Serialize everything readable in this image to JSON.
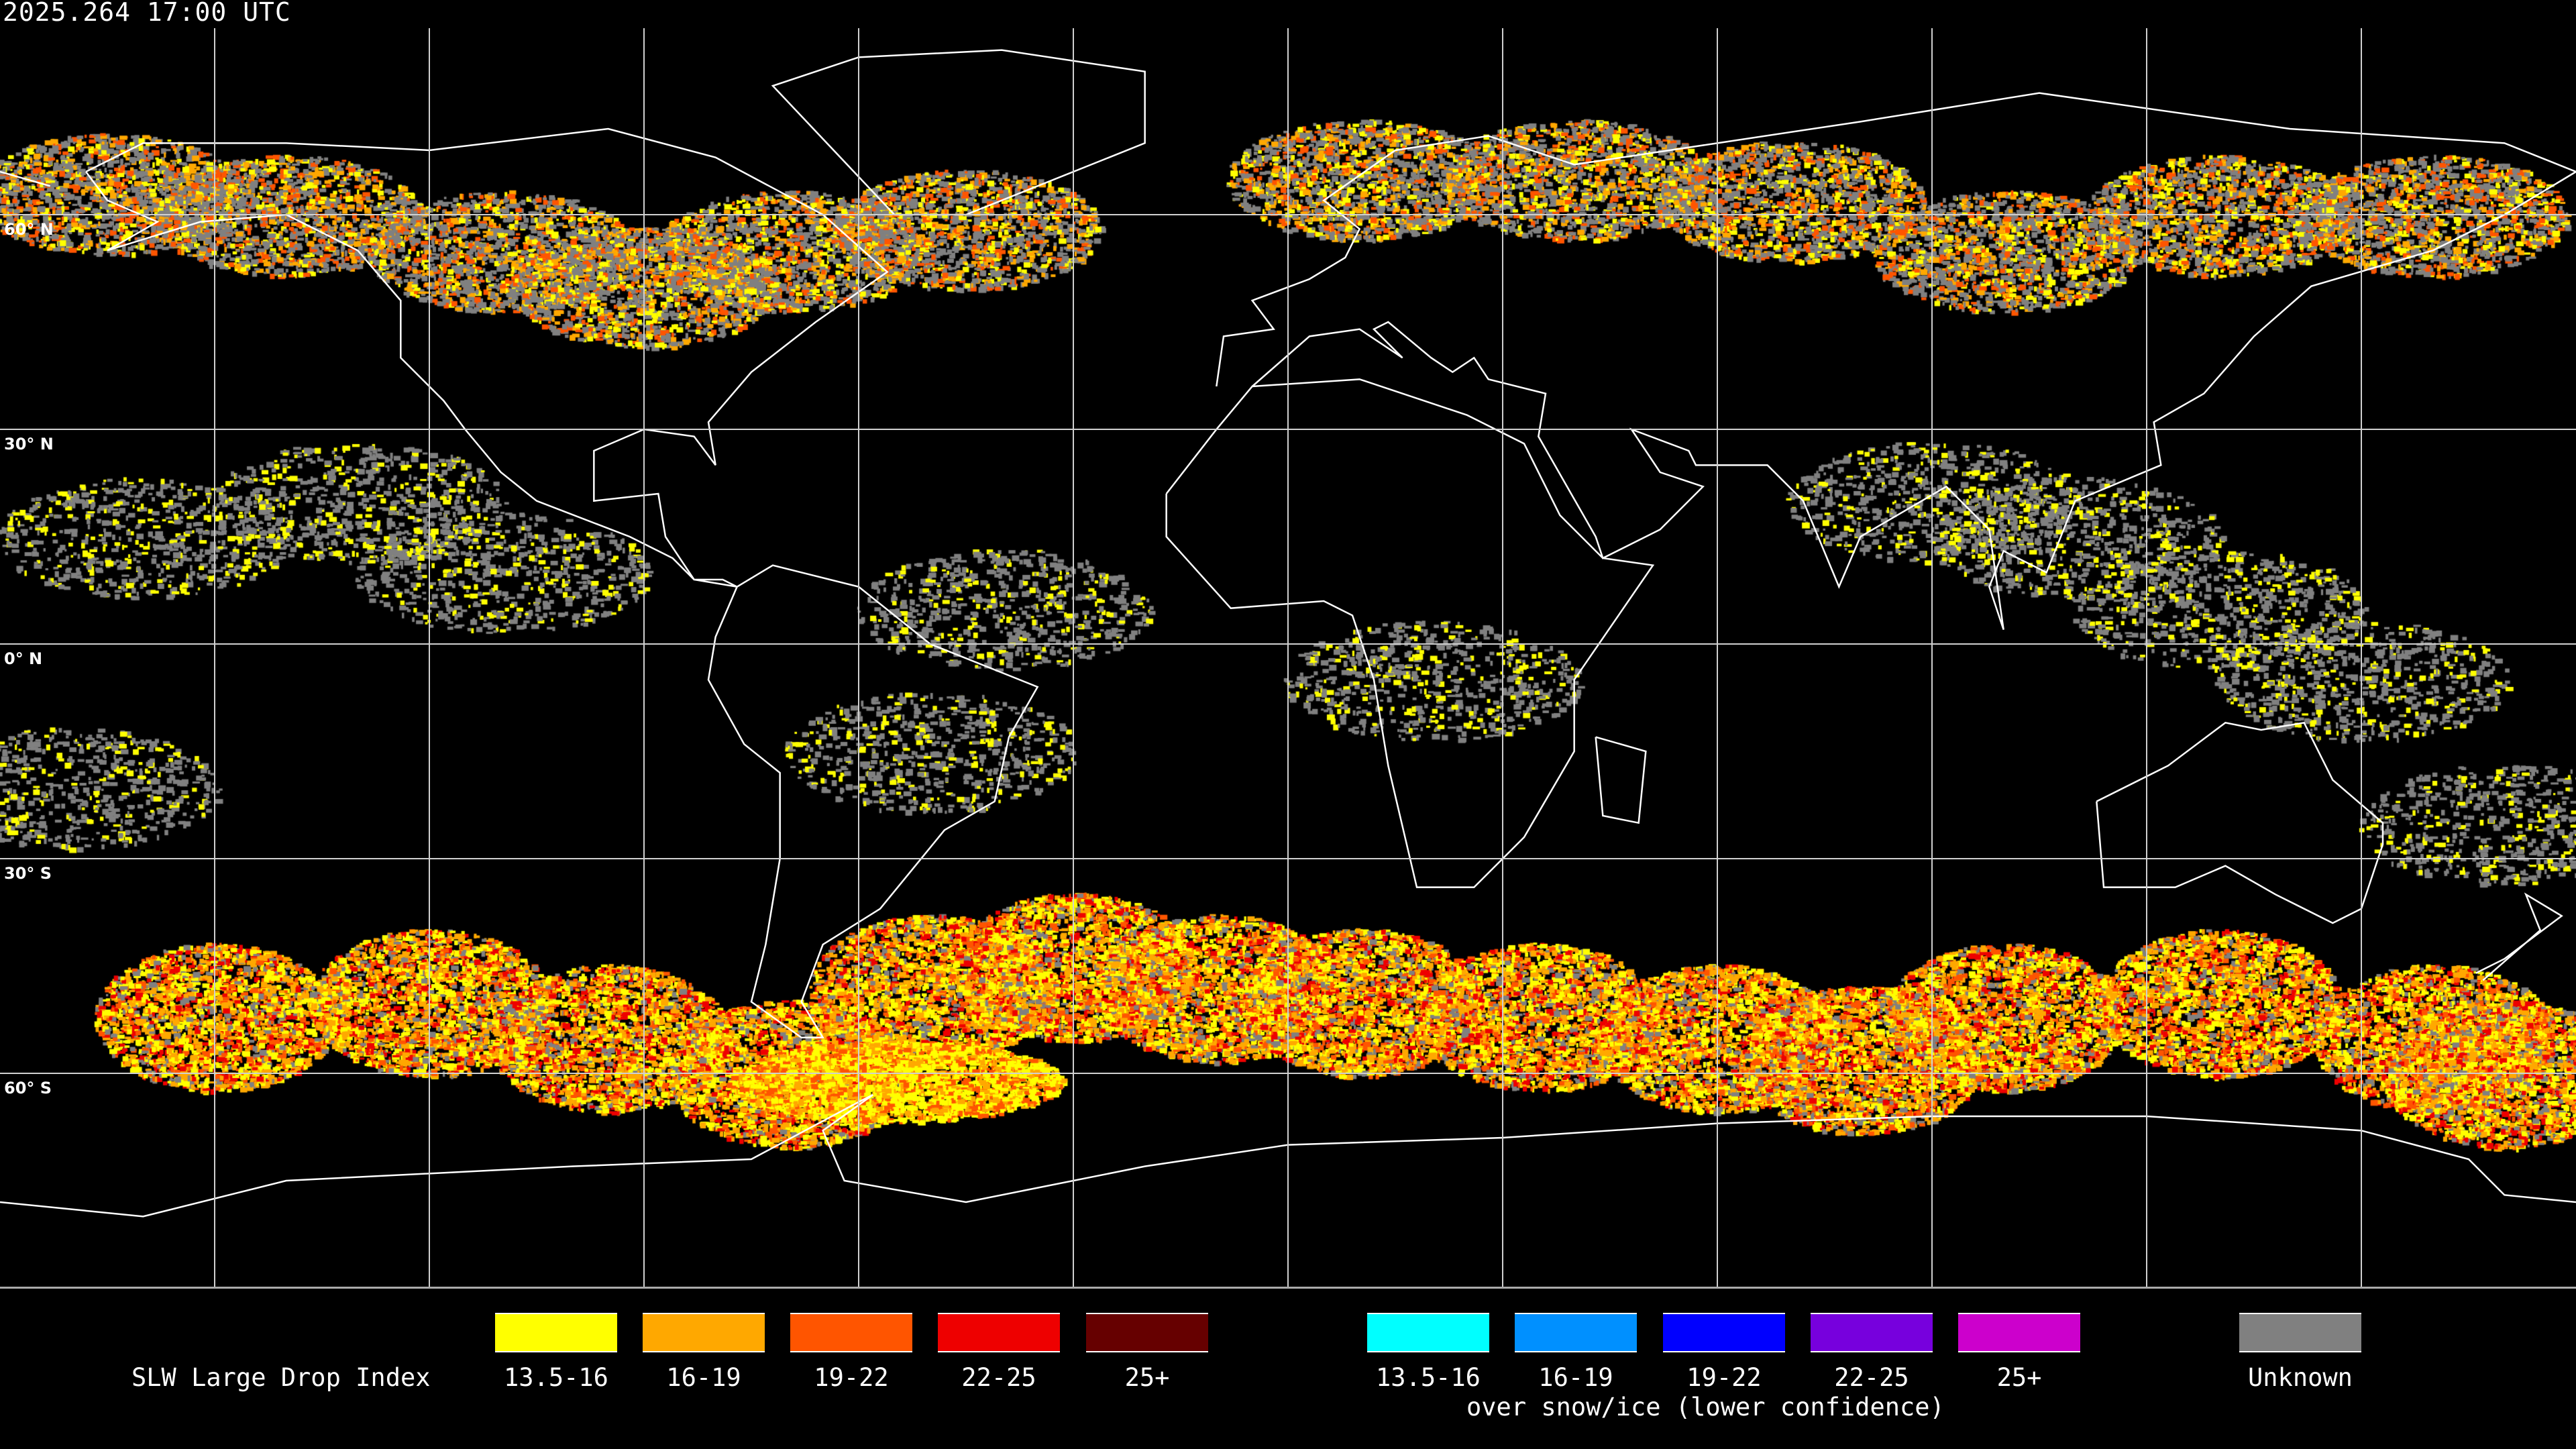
{
  "title": "2025.264 17:00 UTC",
  "map": {
    "projection": "equirectangular",
    "lon_range": [
      -180,
      180
    ],
    "lat_range": [
      -90,
      90
    ],
    "grid_step_deg": 30,
    "lat_labels": [
      "60° N",
      "30° N",
      "0° N",
      "30° S",
      "60° S"
    ],
    "grid_color": "#d0d0d0",
    "coastline_color": "#ffffff",
    "background": "#000000"
  },
  "legend": {
    "title": "SLW Large Drop Index",
    "subtitle": "over snow/ice (lower confidence)",
    "standard": [
      {
        "label": "13.5-16",
        "color": "#ffff00"
      },
      {
        "label": "16-19",
        "color": "#ffa800"
      },
      {
        "label": "19-22",
        "color": "#ff5500"
      },
      {
        "label": "22-25",
        "color": "#ee0000"
      },
      {
        "label": "25+",
        "color": "#660000"
      }
    ],
    "snow_ice": [
      {
        "label": "13.5-16",
        "color": "#00ffff"
      },
      {
        "label": "16-19",
        "color": "#0090ff"
      },
      {
        "label": "19-22",
        "color": "#0000ff"
      },
      {
        "label": "22-25",
        "color": "#7700dd"
      },
      {
        "label": "25+",
        "color": "#cc00cc"
      }
    ],
    "unknown": {
      "label": "Unknown",
      "color": "#808080"
    }
  }
}
